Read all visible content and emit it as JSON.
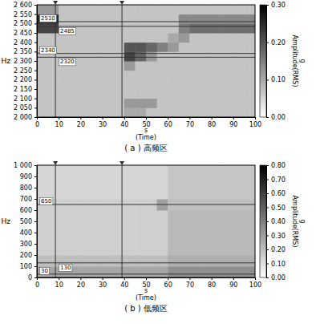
{
  "chart_data": [
    {
      "type": "heatmap",
      "title": "( a ) 高频区",
      "ylabel": "Hz",
      "xlabel_lines": [
        "s",
        "(Time)"
      ],
      "xlim": [
        0,
        100
      ],
      "xticks": [
        0,
        10,
        20,
        30,
        40,
        50,
        60,
        70,
        80,
        90,
        100
      ],
      "ylim": [
        2000,
        2600
      ],
      "yticks": [
        {
          "value": 2000,
          "label": "2 000"
        },
        {
          "value": 2050,
          "label": "2 050"
        },
        {
          "value": 2100,
          "label": "2 100"
        },
        {
          "value": 2150,
          "label": "2 150"
        },
        {
          "value": 2200,
          "label": "2 200"
        },
        {
          "value": 2250,
          "label": "2 250"
        },
        {
          "value": 2300,
          "label": "2 300"
        },
        {
          "value": 2350,
          "label": "2 350"
        },
        {
          "value": 2400,
          "label": "2 400"
        },
        {
          "value": 2450,
          "label": "2 450"
        },
        {
          "value": 2500,
          "label": "2 500"
        },
        {
          "value": 2550,
          "label": "2 550"
        },
        {
          "value": 2600,
          "label": "2 600"
        }
      ],
      "x_edges": [
        0,
        5,
        10,
        15,
        20,
        25,
        30,
        35,
        40,
        45,
        50,
        55,
        60,
        65,
        70,
        75,
        80,
        85,
        90,
        95,
        100
      ],
      "y_edges": [
        2000,
        2050,
        2100,
        2150,
        2200,
        2250,
        2300,
        2350,
        2400,
        2450,
        2500,
        2550,
        2600
      ],
      "z": [
        [
          0.07,
          0.07,
          0.07,
          0.07,
          0.07,
          0.07,
          0.07,
          0.07,
          0.1,
          0.1,
          0.07,
          0.07,
          0.07,
          0.07,
          0.07,
          0.07,
          0.07,
          0.07,
          0.07,
          0.07
        ],
        [
          0.07,
          0.07,
          0.07,
          0.07,
          0.07,
          0.07,
          0.07,
          0.07,
          0.12,
          0.12,
          0.12,
          0.07,
          0.07,
          0.07,
          0.07,
          0.07,
          0.07,
          0.07,
          0.07,
          0.07
        ],
        [
          0.07,
          0.07,
          0.07,
          0.07,
          0.07,
          0.07,
          0.07,
          0.07,
          0.07,
          0.07,
          0.07,
          0.07,
          0.07,
          0.07,
          0.07,
          0.07,
          0.07,
          0.07,
          0.07,
          0.07
        ],
        [
          0.07,
          0.07,
          0.07,
          0.07,
          0.07,
          0.07,
          0.07,
          0.07,
          0.07,
          0.07,
          0.07,
          0.07,
          0.07,
          0.07,
          0.07,
          0.07,
          0.07,
          0.07,
          0.07,
          0.07
        ],
        [
          0.07,
          0.07,
          0.07,
          0.07,
          0.07,
          0.07,
          0.07,
          0.07,
          0.07,
          0.07,
          0.07,
          0.07,
          0.07,
          0.07,
          0.07,
          0.07,
          0.07,
          0.07,
          0.07,
          0.07
        ],
        [
          0.07,
          0.07,
          0.07,
          0.07,
          0.07,
          0.07,
          0.07,
          0.07,
          0.12,
          0.07,
          0.07,
          0.07,
          0.07,
          0.07,
          0.07,
          0.07,
          0.07,
          0.07,
          0.07,
          0.07
        ],
        [
          0.07,
          0.07,
          0.07,
          0.07,
          0.07,
          0.07,
          0.07,
          0.07,
          0.22,
          0.18,
          0.12,
          0.07,
          0.07,
          0.07,
          0.07,
          0.07,
          0.07,
          0.07,
          0.07,
          0.07
        ],
        [
          0.07,
          0.07,
          0.07,
          0.07,
          0.07,
          0.07,
          0.07,
          0.07,
          0.2,
          0.2,
          0.18,
          0.15,
          0.12,
          0.07,
          0.07,
          0.07,
          0.07,
          0.07,
          0.07,
          0.07
        ],
        [
          0.07,
          0.07,
          0.07,
          0.07,
          0.07,
          0.07,
          0.07,
          0.07,
          0.07,
          0.07,
          0.07,
          0.07,
          0.1,
          0.12,
          0.07,
          0.07,
          0.07,
          0.07,
          0.07,
          0.07
        ],
        [
          0.22,
          0.22,
          0.07,
          0.07,
          0.07,
          0.07,
          0.07,
          0.07,
          0.07,
          0.07,
          0.07,
          0.07,
          0.07,
          0.15,
          0.17,
          0.17,
          0.17,
          0.17,
          0.17,
          0.17
        ],
        [
          0.25,
          0.25,
          0.07,
          0.07,
          0.07,
          0.07,
          0.07,
          0.07,
          0.07,
          0.07,
          0.07,
          0.07,
          0.07,
          0.14,
          0.14,
          0.14,
          0.14,
          0.14,
          0.14,
          0.14
        ],
        [
          0.12,
          0.12,
          0.07,
          0.07,
          0.07,
          0.07,
          0.07,
          0.07,
          0.07,
          0.07,
          0.07,
          0.07,
          0.07,
          0.07,
          0.07,
          0.07,
          0.07,
          0.07,
          0.07,
          0.07
        ]
      ],
      "colorbar": {
        "label": [
          "Amplitude(RMS)",
          "g"
        ],
        "range": [
          0,
          0.3
        ],
        "ticks": [
          {
            "value": 0,
            "label": "0.00"
          },
          {
            "value": 0.1,
            "label": "0.10"
          },
          {
            "value": 0.2,
            "label": "0.20"
          },
          {
            "value": 0.3,
            "label": "0.30"
          }
        ]
      },
      "hlines": [
        {
          "value": 2510,
          "label": "2510"
        },
        {
          "value": 2485,
          "label": "2485"
        },
        {
          "value": 2340,
          "label": "2340"
        },
        {
          "value": 2320,
          "label": "2320"
        }
      ],
      "vlines": [
        8.5,
        39
      ]
    },
    {
      "type": "heatmap",
      "title": "( b ) 低频区",
      "ylabel": "Hz",
      "xlabel_lines": [
        "s",
        "(Time)"
      ],
      "xlim": [
        0,
        100
      ],
      "xticks": [
        0,
        10,
        20,
        30,
        40,
        50,
        60,
        70,
        80,
        90,
        100
      ],
      "ylim": [
        0,
        1000
      ],
      "yticks": [
        0,
        100,
        200,
        300,
        400,
        500,
        600,
        700,
        800,
        900,
        {
          "value": 1000,
          "label": "1 000"
        }
      ],
      "x_edges": [
        0,
        5,
        10,
        15,
        20,
        25,
        30,
        35,
        40,
        45,
        50,
        55,
        60,
        65,
        70,
        75,
        80,
        85,
        90,
        95,
        100
      ],
      "y_edges": [
        0,
        100,
        200,
        300,
        400,
        500,
        600,
        700,
        800,
        900,
        1000
      ],
      "z": [
        [
          0.28,
          0.28,
          0.28,
          0.28,
          0.28,
          0.28,
          0.28,
          0.28,
          0.28,
          0.28,
          0.28,
          0.28,
          0.35,
          0.35,
          0.35,
          0.35,
          0.35,
          0.35,
          0.35,
          0.35
        ],
        [
          0.2,
          0.2,
          0.2,
          0.2,
          0.2,
          0.2,
          0.2,
          0.2,
          0.2,
          0.2,
          0.2,
          0.2,
          0.25,
          0.25,
          0.25,
          0.25,
          0.25,
          0.25,
          0.25,
          0.25
        ],
        [
          0.15,
          0.15,
          0.15,
          0.15,
          0.15,
          0.15,
          0.15,
          0.15,
          0.15,
          0.15,
          0.15,
          0.15,
          0.22,
          0.22,
          0.22,
          0.22,
          0.22,
          0.22,
          0.22,
          0.22
        ],
        [
          0.15,
          0.15,
          0.15,
          0.15,
          0.15,
          0.15,
          0.15,
          0.15,
          0.15,
          0.15,
          0.15,
          0.15,
          0.22,
          0.22,
          0.22,
          0.22,
          0.22,
          0.22,
          0.22,
          0.22
        ],
        [
          0.15,
          0.15,
          0.15,
          0.15,
          0.15,
          0.15,
          0.15,
          0.15,
          0.15,
          0.15,
          0.15,
          0.15,
          0.22,
          0.22,
          0.22,
          0.22,
          0.22,
          0.22,
          0.22,
          0.22
        ],
        [
          0.15,
          0.15,
          0.15,
          0.15,
          0.15,
          0.15,
          0.15,
          0.15,
          0.15,
          0.15,
          0.15,
          0.15,
          0.22,
          0.22,
          0.22,
          0.22,
          0.22,
          0.22,
          0.22,
          0.22
        ],
        [
          0.15,
          0.15,
          0.15,
          0.15,
          0.15,
          0.15,
          0.15,
          0.15,
          0.15,
          0.15,
          0.15,
          0.3,
          0.2,
          0.2,
          0.2,
          0.2,
          0.2,
          0.2,
          0.2,
          0.2
        ],
        [
          0.13,
          0.13,
          0.13,
          0.13,
          0.13,
          0.13,
          0.13,
          0.13,
          0.13,
          0.13,
          0.13,
          0.13,
          0.18,
          0.18,
          0.18,
          0.18,
          0.18,
          0.18,
          0.18,
          0.18
        ],
        [
          0.13,
          0.13,
          0.13,
          0.13,
          0.13,
          0.13,
          0.13,
          0.13,
          0.13,
          0.13,
          0.13,
          0.13,
          0.18,
          0.18,
          0.18,
          0.18,
          0.18,
          0.18,
          0.18,
          0.18
        ],
        [
          0.13,
          0.13,
          0.13,
          0.13,
          0.13,
          0.13,
          0.13,
          0.13,
          0.13,
          0.13,
          0.13,
          0.13,
          0.18,
          0.18,
          0.18,
          0.18,
          0.18,
          0.18,
          0.18,
          0.18
        ]
      ],
      "colorbar": {
        "label": [
          "Amplitude(RMS)",
          "g"
        ],
        "range": [
          0,
          0.8
        ],
        "ticks": [
          {
            "value": 0,
            "label": "0.00"
          },
          {
            "value": 0.1,
            "label": "0.10"
          },
          {
            "value": 0.2,
            "label": "0.20"
          },
          {
            "value": 0.3,
            "label": "0.30"
          },
          {
            "value": 0.4,
            "label": "0.40"
          },
          {
            "value": 0.5,
            "label": "0.50"
          },
          {
            "value": 0.6,
            "label": "0.60"
          },
          {
            "value": 0.7,
            "label": "0.70"
          },
          {
            "value": 0.8,
            "label": "0.80"
          }
        ]
      },
      "hlines": [
        {
          "value": 650,
          "label": "650"
        },
        {
          "value": 130,
          "label": "130"
        },
        {
          "value": 30,
          "label": "30"
        }
      ],
      "vlines": [
        8.5,
        39
      ]
    }
  ]
}
